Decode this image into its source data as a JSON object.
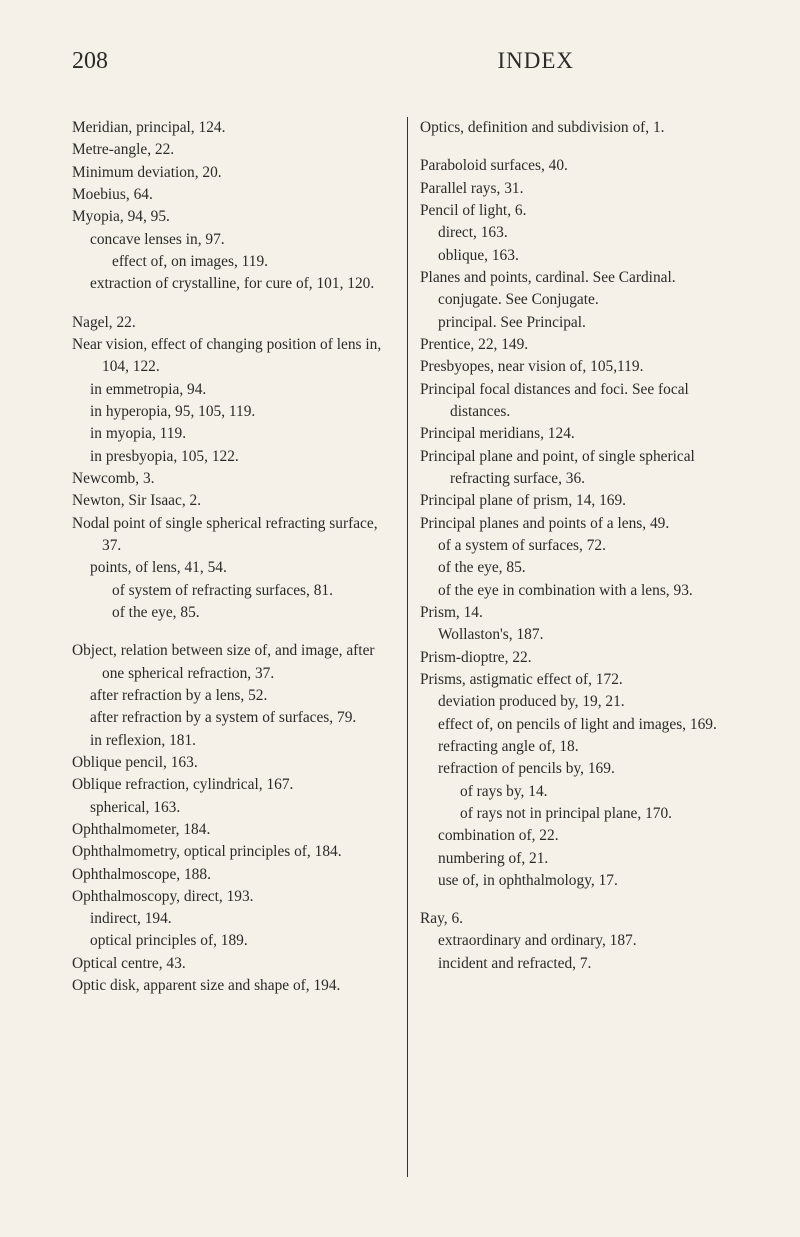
{
  "header": {
    "page_number": "208",
    "title": "INDEX"
  },
  "left_column": [
    {
      "lvl": 0,
      "text": "Meridian, principal, 124."
    },
    {
      "lvl": 0,
      "text": "Metre-angle, 22."
    },
    {
      "lvl": 0,
      "text": "Minimum deviation, 20."
    },
    {
      "lvl": 0,
      "text": "Moebius, 64."
    },
    {
      "lvl": 0,
      "text": "Myopia, 94, 95."
    },
    {
      "lvl": 1,
      "text": "concave lenses in, 97."
    },
    {
      "lvl": 2,
      "text": "effect of, on images, 119."
    },
    {
      "lvl": 1,
      "text": "extraction of crystalline, for cure of, 101, 120."
    },
    {
      "gap": true
    },
    {
      "lvl": 0,
      "text": "Nagel, 22."
    },
    {
      "lvl": 0,
      "text": "Near vision, effect of changing position of lens in, 104, 122."
    },
    {
      "lvl": 1,
      "text": "in emmetropia, 94."
    },
    {
      "lvl": 1,
      "text": "in hyperopia, 95, 105, 119."
    },
    {
      "lvl": 1,
      "text": "in myopia, 119."
    },
    {
      "lvl": 1,
      "text": "in presbyopia, 105, 122."
    },
    {
      "lvl": 0,
      "text": "Newcomb, 3."
    },
    {
      "lvl": 0,
      "text": "Newton, Sir Isaac, 2."
    },
    {
      "lvl": 0,
      "text": "Nodal point of single spherical refracting surface, 37."
    },
    {
      "lvl": 1,
      "text": "points, of lens, 41, 54."
    },
    {
      "lvl": 2,
      "text": "of system of refracting surfaces, 81."
    },
    {
      "lvl": 2,
      "text": "of the eye, 85."
    },
    {
      "gap": true
    },
    {
      "lvl": 0,
      "text": "Object, relation between size of, and image, after one spherical refraction, 37."
    },
    {
      "lvl": 1,
      "text": "after refraction by a lens, 52."
    },
    {
      "lvl": 1,
      "text": "after refraction by a system of surfaces, 79."
    },
    {
      "lvl": 1,
      "text": "in reflexion, 181."
    },
    {
      "lvl": 0,
      "text": "Oblique pencil, 163."
    },
    {
      "lvl": 0,
      "text": "Oblique refraction, cylindrical, 167."
    },
    {
      "lvl": 1,
      "text": "spherical, 163."
    },
    {
      "lvl": 0,
      "text": "Ophthalmometer, 184."
    },
    {
      "lvl": 0,
      "text": "Ophthalmometry, optical principles of, 184."
    },
    {
      "lvl": 0,
      "text": "Ophthalmoscope, 188."
    },
    {
      "lvl": 0,
      "text": "Ophthalmoscopy, direct, 193."
    },
    {
      "lvl": 1,
      "text": "indirect, 194."
    },
    {
      "lvl": 1,
      "text": "optical principles of, 189."
    },
    {
      "lvl": 0,
      "text": "Optical centre, 43."
    },
    {
      "lvl": 0,
      "text": "Optic disk, apparent size and shape of, 194."
    }
  ],
  "right_column": [
    {
      "lvl": 0,
      "text": "Optics, definition and subdivision of, 1."
    },
    {
      "gap": true
    },
    {
      "lvl": 0,
      "text": "Paraboloid surfaces, 40."
    },
    {
      "lvl": 0,
      "text": "Parallel rays, 31."
    },
    {
      "lvl": 0,
      "text": "Pencil of light, 6."
    },
    {
      "lvl": 1,
      "text": "direct, 163."
    },
    {
      "lvl": 1,
      "text": "oblique, 163."
    },
    {
      "lvl": 0,
      "text": "Planes and points, cardinal. See Cardinal."
    },
    {
      "lvl": 1,
      "text": "conjugate. See Conjugate."
    },
    {
      "lvl": 1,
      "text": "principal. See Principal."
    },
    {
      "lvl": 0,
      "text": "Prentice, 22, 149."
    },
    {
      "lvl": 0,
      "text": "Presbyopes, near vision of, 105,119."
    },
    {
      "lvl": 0,
      "text": "Principal focal distances and foci. See focal distances."
    },
    {
      "lvl": 0,
      "text": "Principal meridians, 124."
    },
    {
      "lvl": 0,
      "text": "Principal plane and point, of single spherical refracting surface, 36."
    },
    {
      "lvl": 0,
      "text": "Principal plane of prism, 14, 169."
    },
    {
      "lvl": 0,
      "text": "Principal planes and points of a lens, 49."
    },
    {
      "lvl": 1,
      "text": "of a system of surfaces, 72."
    },
    {
      "lvl": 1,
      "text": "of the eye, 85."
    },
    {
      "lvl": 1,
      "text": "of the eye in combination with a lens, 93."
    },
    {
      "lvl": 0,
      "text": "Prism, 14."
    },
    {
      "lvl": 1,
      "text": "Wollaston's, 187."
    },
    {
      "lvl": 0,
      "text": "Prism-dioptre, 22."
    },
    {
      "lvl": 0,
      "text": "Prisms, astigmatic effect of, 172."
    },
    {
      "lvl": 1,
      "text": "deviation produced by, 19, 21."
    },
    {
      "lvl": 1,
      "text": "effect of, on pencils of light and images, 169."
    },
    {
      "lvl": 1,
      "text": "refracting angle of, 18."
    },
    {
      "lvl": 1,
      "text": "refraction of pencils by, 169."
    },
    {
      "lvl": 2,
      "text": "of rays by, 14."
    },
    {
      "lvl": 2,
      "text": "of rays not in principal plane, 170."
    },
    {
      "lvl": 1,
      "text": "combination of, 22."
    },
    {
      "lvl": 1,
      "text": "numbering of, 21."
    },
    {
      "lvl": 1,
      "text": "use of, in ophthalmology, 17."
    },
    {
      "gap": true
    },
    {
      "lvl": 0,
      "text": "Ray, 6."
    },
    {
      "lvl": 1,
      "text": "extraordinary and ordinary, 187."
    },
    {
      "lvl": 1,
      "text": "incident and refracted, 7."
    }
  ]
}
